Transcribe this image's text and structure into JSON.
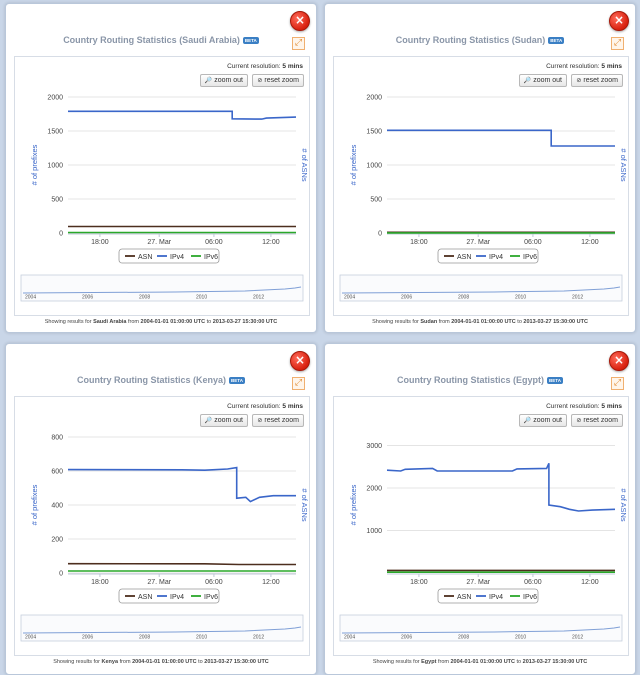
{
  "common": {
    "beta_label": "BETA",
    "resolution_prefix": "Current resolution:",
    "resolution_value": "5 mins",
    "zoom_out_label": "zoom out",
    "reset_zoom_label": "reset zoom",
    "y_left_label": "# of prefixes",
    "y_right_label": "# of ASNs",
    "legend": [
      "ASN",
      "IPv4",
      "IPv6"
    ],
    "footer_prefix": "Showing results for",
    "footer_from": "from",
    "footer_from_value": "2004-01-01 01:00:00 UTC",
    "footer_to": "to",
    "footer_to_value": "2013-03-27 15:30:00 UTC",
    "close_icon": "×",
    "expand_icon": "⤢",
    "colors": {
      "asn": "#4d2e1e",
      "ipv4": "#3a66c9",
      "ipv6": "#2aa82a"
    }
  },
  "panels": [
    {
      "country": "Saudi Arabia",
      "title": "Country Routing Statistics (Saudi Arabia)",
      "chart_data": {
        "type": "line",
        "x_ticks": [
          "18:00",
          "27. Mar",
          "06:00",
          "12:00"
        ],
        "y_ticks": [
          0,
          500,
          1000,
          1500,
          2000
        ],
        "ylim": [
          0,
          2000
        ],
        "series": [
          {
            "name": "IPv4",
            "points": [
              [
                0,
                1790
              ],
              [
                0.72,
                1790
              ],
              [
                0.72,
                1680
              ],
              [
                0.85,
                1675
              ],
              [
                0.87,
                1690
              ],
              [
                1,
                1705
              ]
            ]
          },
          {
            "name": "ASN",
            "points": [
              [
                0,
                95
              ],
              [
                1,
                95
              ]
            ]
          },
          {
            "name": "IPv6",
            "points": [
              [
                0,
                8
              ],
              [
                1,
                8
              ]
            ]
          }
        ],
        "navigator_ticks": [
          "2004",
          "2006",
          "2008",
          "2010",
          "2012"
        ]
      }
    },
    {
      "country": "Sudan",
      "title": "Country Routing Statistics (Sudan)",
      "chart_data": {
        "type": "line",
        "x_ticks": [
          "18:00",
          "27. Mar",
          "06:00",
          "12:00"
        ],
        "y_ticks": [
          0,
          500,
          1000,
          1500,
          2000
        ],
        "ylim": [
          0,
          2000
        ],
        "series": [
          {
            "name": "IPv4",
            "points": [
              [
                0,
                1510
              ],
              [
                0.72,
                1510
              ],
              [
                0.72,
                1280
              ],
              [
                1,
                1280
              ]
            ]
          },
          {
            "name": "ASN",
            "points": [
              [
                0,
                10
              ],
              [
                1,
                10
              ]
            ]
          },
          {
            "name": "IPv6",
            "points": [
              [
                0,
                2
              ],
              [
                1,
                2
              ]
            ]
          }
        ],
        "navigator_ticks": [
          "2004",
          "2006",
          "2008",
          "2010",
          "2012"
        ]
      }
    },
    {
      "country": "Kenya",
      "title": "Country Routing Statistics (Kenya)",
      "chart_data": {
        "type": "line",
        "x_ticks": [
          "18:00",
          "27. Mar",
          "06:00",
          "12:00"
        ],
        "y_ticks": [
          0,
          200,
          400,
          600,
          800
        ],
        "ylim": [
          0,
          800
        ],
        "series": [
          {
            "name": "IPv4",
            "points": [
              [
                0,
                608
              ],
              [
                0.5,
                607
              ],
              [
                0.6,
                605
              ],
              [
                0.7,
                612
              ],
              [
                0.74,
                620
              ],
              [
                0.74,
                440
              ],
              [
                0.78,
                445
              ],
              [
                0.8,
                420
              ],
              [
                0.84,
                445
              ],
              [
                0.9,
                455
              ],
              [
                1,
                455
              ]
            ]
          },
          {
            "name": "ASN",
            "points": [
              [
                0,
                55
              ],
              [
                0.6,
                54
              ],
              [
                0.75,
                50
              ],
              [
                1,
                50
              ]
            ]
          },
          {
            "name": "IPv6",
            "points": [
              [
                0,
                12
              ],
              [
                1,
                12
              ]
            ]
          }
        ],
        "navigator_ticks": [
          "2004",
          "2006",
          "2008",
          "2010",
          "2012"
        ]
      }
    },
    {
      "country": "Egypt",
      "title": "Country Routing Statistics (Egypt)",
      "chart_data": {
        "type": "line",
        "x_ticks": [
          "18:00",
          "27. Mar",
          "06:00",
          "12:00"
        ],
        "y_ticks": [
          1000,
          2000,
          3000
        ],
        "ylim": [
          0,
          3200
        ],
        "series": [
          {
            "name": "IPv4",
            "points": [
              [
                0,
                2420
              ],
              [
                0.06,
                2400
              ],
              [
                0.08,
                2440
              ],
              [
                0.2,
                2460
              ],
              [
                0.22,
                2400
              ],
              [
                0.55,
                2400
              ],
              [
                0.57,
                2450
              ],
              [
                0.7,
                2460
              ],
              [
                0.71,
                2580
              ],
              [
                0.71,
                1600
              ],
              [
                0.76,
                1560
              ],
              [
                0.8,
                1500
              ],
              [
                0.84,
                1460
              ],
              [
                0.9,
                1480
              ],
              [
                1,
                1500
              ]
            ]
          },
          {
            "name": "ASN",
            "points": [
              [
                0,
                60
              ],
              [
                1,
                60
              ]
            ]
          },
          {
            "name": "IPv6",
            "points": [
              [
                0,
                20
              ],
              [
                1,
                20
              ]
            ]
          }
        ],
        "navigator_ticks": [
          "2004",
          "2006",
          "2008",
          "2010",
          "2012"
        ]
      }
    }
  ]
}
